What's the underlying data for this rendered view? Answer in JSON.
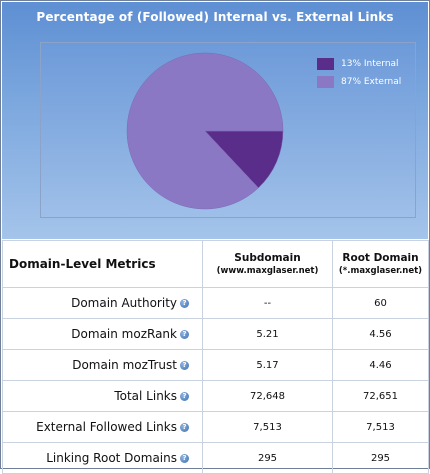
{
  "chart_data": {
    "type": "pie",
    "title": "Percentage of (Followed) Internal vs. External Links",
    "slices": [
      {
        "label": "13% Internal",
        "value": 13,
        "color": "#5b2d8a"
      },
      {
        "label": "87% External",
        "value": 87,
        "color": "#8b78c4"
      }
    ],
    "legend": "top-right"
  },
  "table": {
    "title": "Domain-Level Metrics",
    "columns": [
      {
        "main": "Subdomain",
        "sub": "(www.maxglaser.net)"
      },
      {
        "main": "Root Domain",
        "sub": "(*.maxglaser.net)"
      }
    ],
    "rows": [
      {
        "label": "Domain Authority",
        "sub": "--",
        "root": "60"
      },
      {
        "label": "Domain mozRank",
        "sub": "5.21",
        "root": "4.56"
      },
      {
        "label": "Domain mozTrust",
        "sub": "5.17",
        "root": "4.46"
      },
      {
        "label": "Total Links",
        "sub": "72,648",
        "root": "72,651"
      },
      {
        "label": "External Followed Links",
        "sub": "7,513",
        "root": "7,513"
      },
      {
        "label": "Linking Root Domains",
        "sub": "295",
        "root": "295"
      }
    ],
    "help_icon": "?"
  }
}
